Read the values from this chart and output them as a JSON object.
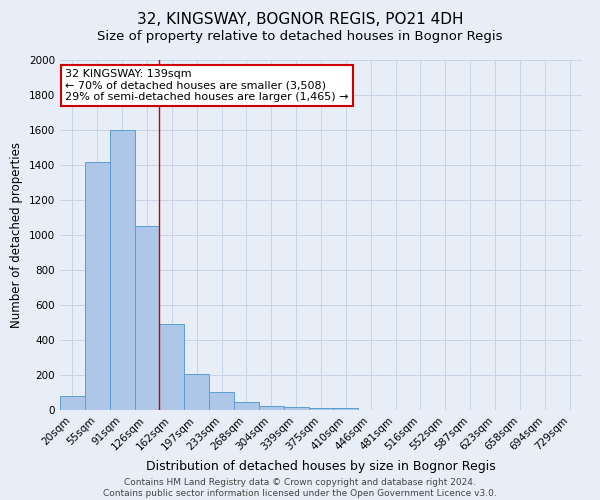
{
  "title": "32, KINGSWAY, BOGNOR REGIS, PO21 4DH",
  "subtitle": "Size of property relative to detached houses in Bognor Regis",
  "xlabel": "Distribution of detached houses by size in Bognor Regis",
  "ylabel": "Number of detached properties",
  "categories": [
    "20sqm",
    "55sqm",
    "91sqm",
    "126sqm",
    "162sqm",
    "197sqm",
    "233sqm",
    "268sqm",
    "304sqm",
    "339sqm",
    "375sqm",
    "410sqm",
    "446sqm",
    "481sqm",
    "516sqm",
    "552sqm",
    "587sqm",
    "623sqm",
    "658sqm",
    "694sqm",
    "729sqm"
  ],
  "values": [
    80,
    1420,
    1600,
    1050,
    490,
    205,
    105,
    45,
    25,
    15,
    12,
    10,
    0,
    0,
    0,
    0,
    0,
    0,
    0,
    0,
    0
  ],
  "bar_color": "#aec6e8",
  "bar_edge_color": "#5a9fd4",
  "red_line_x": 3.5,
  "annotation_text": "32 KINGSWAY: 139sqm\n← 70% of detached houses are smaller (3,508)\n29% of semi-detached houses are larger (1,465) →",
  "annotation_box_color": "white",
  "annotation_box_edge_color": "#cc0000",
  "red_line_color": "#cc0000",
  "grid_color": "#c8d4e8",
  "background_color": "#e8eef8",
  "footer_line1": "Contains HM Land Registry data © Crown copyright and database right 2024.",
  "footer_line2": "Contains public sector information licensed under the Open Government Licence v3.0.",
  "ylim": [
    0,
    2000
  ],
  "yticks": [
    0,
    200,
    400,
    600,
    800,
    1000,
    1200,
    1400,
    1600,
    1800,
    2000
  ],
  "title_fontsize": 11,
  "subtitle_fontsize": 9.5,
  "xlabel_fontsize": 9,
  "ylabel_fontsize": 8.5,
  "tick_fontsize": 7.5,
  "annotation_fontsize": 8,
  "footer_fontsize": 6.5
}
